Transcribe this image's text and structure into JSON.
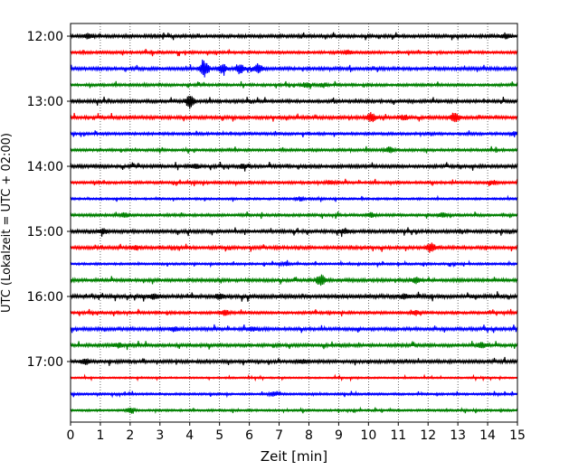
{
  "chart_data": {
    "type": "line",
    "title": "",
    "xlabel": "Zeit  [min]",
    "ylabel": "UTC (Lokalzeit = UTC + 02:00)",
    "xlim": [
      0,
      15
    ],
    "x_ticks": [
      "0",
      "1",
      "2",
      "3",
      "4",
      "5",
      "6",
      "7",
      "8",
      "9",
      "10",
      "11",
      "12",
      "13",
      "14",
      "15"
    ],
    "y_tick_labels": [
      "12:00",
      "13:00",
      "14:00",
      "15:00",
      "16:00",
      "17:00"
    ],
    "grid": "vertical dotted at each minute",
    "row_interval_minutes": 15,
    "start_time_utc": "12:00",
    "colors": [
      "#000000",
      "#ff0000",
      "#0000ff",
      "#008000"
    ],
    "series": [
      {
        "start": "12:00",
        "color": "#000000",
        "amplitude": 0.3,
        "events": [
          [
            0.6,
            0.5
          ],
          [
            14.6,
            0.5
          ]
        ]
      },
      {
        "start": "12:15",
        "color": "#ff0000",
        "amplitude": 0.25,
        "events": [
          [
            9.3,
            0.4
          ]
        ]
      },
      {
        "start": "12:30",
        "color": "#0000ff",
        "amplitude": 0.3,
        "events": [
          [
            4.5,
            1.8
          ],
          [
            5.1,
            0.9
          ],
          [
            5.7,
            0.8
          ],
          [
            6.3,
            0.9
          ]
        ]
      },
      {
        "start": "12:45",
        "color": "#008000",
        "amplitude": 0.25,
        "events": [
          [
            7.9,
            0.5
          ],
          [
            8.5,
            0.4
          ]
        ]
      },
      {
        "start": "13:00",
        "color": "#000000",
        "amplitude": 0.3,
        "events": [
          [
            4.0,
            1.2
          ]
        ]
      },
      {
        "start": "13:15",
        "color": "#ff0000",
        "amplitude": 0.3,
        "events": [
          [
            10.1,
            1.0
          ],
          [
            11.2,
            0.5
          ],
          [
            12.9,
            1.1
          ]
        ]
      },
      {
        "start": "13:30",
        "color": "#0000ff",
        "amplitude": 0.25,
        "events": [
          [
            14.9,
            0.3
          ]
        ]
      },
      {
        "start": "13:45",
        "color": "#008000",
        "amplitude": 0.25,
        "events": [
          [
            10.7,
            0.6
          ]
        ]
      },
      {
        "start": "14:00",
        "color": "#000000",
        "amplitude": 0.3,
        "events": [
          [
            4.2,
            0.4
          ],
          [
            5.8,
            0.4
          ]
        ]
      },
      {
        "start": "14:15",
        "color": "#ff0000",
        "amplitude": 0.25,
        "events": [
          [
            8.7,
            0.4
          ],
          [
            14.2,
            0.4
          ]
        ]
      },
      {
        "start": "14:30",
        "color": "#0000ff",
        "amplitude": 0.2,
        "events": [
          [
            7.7,
            0.4
          ]
        ]
      },
      {
        "start": "14:45",
        "color": "#008000",
        "amplitude": 0.25,
        "events": [
          [
            1.8,
            0.5
          ],
          [
            10.1,
            0.5
          ],
          [
            12.5,
            0.5
          ]
        ]
      },
      {
        "start": "15:00",
        "color": "#000000",
        "amplitude": 0.3,
        "events": [
          [
            1.1,
            0.5
          ],
          [
            9.2,
            0.4
          ]
        ]
      },
      {
        "start": "15:15",
        "color": "#ff0000",
        "amplitude": 0.3,
        "events": [
          [
            12.1,
            1.0
          ],
          [
            2.2,
            0.4
          ]
        ]
      },
      {
        "start": "15:30",
        "color": "#0000ff",
        "amplitude": 0.2,
        "events": [
          [
            7.2,
            0.3
          ]
        ]
      },
      {
        "start": "15:45",
        "color": "#008000",
        "amplitude": 0.3,
        "events": [
          [
            8.4,
            1.2
          ],
          [
            11.6,
            0.6
          ]
        ]
      },
      {
        "start": "16:00",
        "color": "#000000",
        "amplitude": 0.35,
        "events": [
          [
            5.0,
            0.5
          ],
          [
            2.8,
            0.4
          ],
          [
            11.2,
            0.4
          ]
        ]
      },
      {
        "start": "16:15",
        "color": "#ff0000",
        "amplitude": 0.25,
        "events": [
          [
            5.2,
            0.5
          ],
          [
            11.6,
            0.4
          ]
        ]
      },
      {
        "start": "16:30",
        "color": "#0000ff",
        "amplitude": 0.3,
        "events": [
          [
            3.5,
            0.4
          ],
          [
            6.1,
            0.4
          ]
        ]
      },
      {
        "start": "16:45",
        "color": "#008000",
        "amplitude": 0.3,
        "events": [
          [
            13.8,
            0.5
          ],
          [
            1.6,
            0.4
          ]
        ]
      },
      {
        "start": "17:00",
        "color": "#000000",
        "amplitude": 0.3,
        "events": [
          [
            0.5,
            0.5
          ],
          [
            7.8,
            0.4
          ]
        ]
      },
      {
        "start": "17:15",
        "color": "#ff0000",
        "amplitude": 0.15,
        "events": []
      },
      {
        "start": "17:30",
        "color": "#0000ff",
        "amplitude": 0.2,
        "events": [
          [
            6.8,
            0.5
          ]
        ]
      },
      {
        "start": "17:45",
        "color": "#008000",
        "amplitude": 0.2,
        "events": [
          [
            2.0,
            0.5
          ]
        ]
      }
    ]
  }
}
